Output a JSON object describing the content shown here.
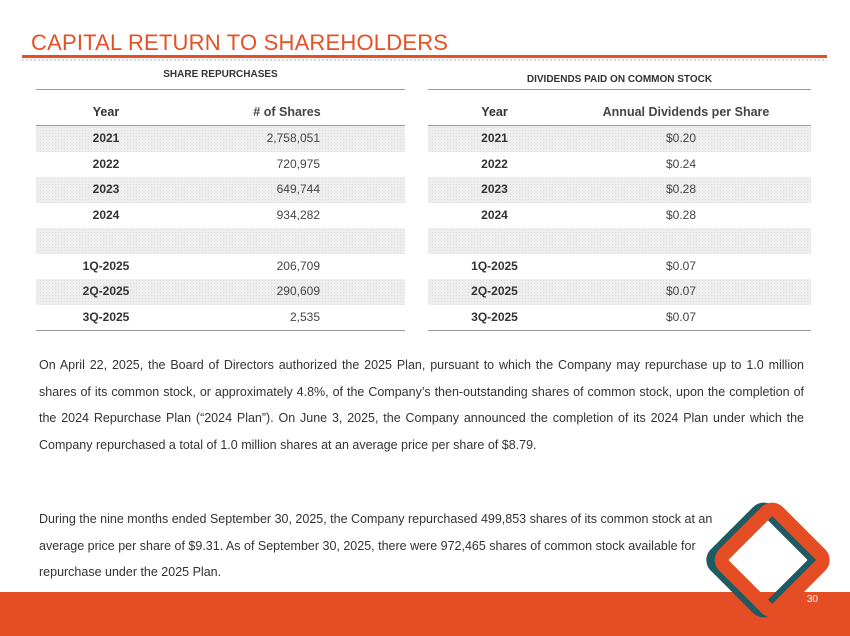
{
  "header": {
    "title": "CAPITAL RETURN TO SHAREHOLDERS"
  },
  "repurchases": {
    "title": "SHARE REPURCHASES",
    "col_year": "Year",
    "col_shares": "# of Shares",
    "rows": [
      {
        "year": "2021",
        "shares": "2,758,051"
      },
      {
        "year": "2022",
        "shares": "720,975"
      },
      {
        "year": "2023",
        "shares": "649,744"
      },
      {
        "year": "2024",
        "shares": "934,282"
      },
      {
        "year": "",
        "shares": ""
      },
      {
        "year": "1Q-2025",
        "shares": "206,709"
      },
      {
        "year": "2Q-2025",
        "shares": "290,609"
      },
      {
        "year": "3Q-2025",
        "shares": "2,535"
      }
    ]
  },
  "dividends": {
    "title": "DIVIDENDS PAID ON COMMON STOCK",
    "col_year": "Year",
    "col_dividend": "Annual Dividends per Share",
    "rows": [
      {
        "year": "2021",
        "dividend": "$0.20"
      },
      {
        "year": "2022",
        "dividend": "$0.24"
      },
      {
        "year": "2023",
        "dividend": "$0.28"
      },
      {
        "year": "2024",
        "dividend": "$0.28"
      },
      {
        "year": "",
        "dividend": ""
      },
      {
        "year": "1Q-2025",
        "dividend": "$0.07"
      },
      {
        "year": "2Q-2025",
        "dividend": "$0.07"
      },
      {
        "year": "3Q-2025",
        "dividend": "$0.07"
      }
    ]
  },
  "body": {
    "paragraph1": "On April 22, 2025, the Board of Directors authorized the 2025 Plan, pursuant to which the Company may repurchase up to 1.0 million shares of its common stock, or approximately 4.8%, of the Company’s then-outstanding shares of common stock, upon the completion of the 2024 Repurchase Plan (“2024 Plan”). On June 3, 2025, the Company announced the completion of its 2024 Plan under which the Company repurchased a total of 1.0 million shares at an average price per share of $8.79.",
    "paragraph2": "During the nine months ended September 30, 2025, the Company repurchased 499,853 shares of its common stock at an average price per share of $9.31. As of September 30, 2025, there were 972,465 shares of common stock available for repurchase under the 2025 Plan."
  },
  "footer": {
    "page_number": "30"
  },
  "colors": {
    "accent": "#e54d25",
    "logo_teal": "#1f5b63",
    "logo_orange": "#e54d25"
  }
}
